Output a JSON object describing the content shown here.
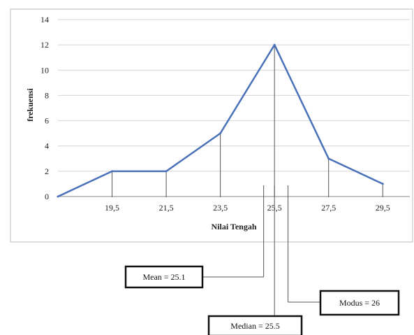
{
  "chart_data": {
    "type": "line",
    "x": [
      17.5,
      19.5,
      21.5,
      23.5,
      25.5,
      27.5,
      29.5
    ],
    "series": [
      {
        "values": [
          0,
          2,
          2,
          5,
          12,
          3,
          1
        ]
      }
    ],
    "x_tick_labels": [
      "19,5",
      "21,5",
      "23,5",
      "25,5",
      "27,5",
      "29,5"
    ],
    "x_ticks": [
      19.5,
      21.5,
      23.5,
      25.5,
      27.5,
      29.5
    ],
    "y_ticks": [
      0,
      2,
      4,
      6,
      8,
      10,
      12,
      14
    ],
    "y_tick_labels": [
      "0",
      "2",
      "4",
      "6",
      "8",
      "10",
      "12",
      "14"
    ],
    "xlabel": "Nilai Tengah",
    "ylabel": "frekuensi",
    "xlim": [
      17.5,
      30.5
    ],
    "ylim": [
      0,
      14
    ],
    "grid": true,
    "line_color": "#4a72b8",
    "annotations": [
      {
        "label": "Mean = 25.1",
        "value": 25.1
      },
      {
        "label": "Median = 25.5",
        "value": 25.5
      },
      {
        "label": "Modus = 26",
        "value": 26
      }
    ]
  }
}
